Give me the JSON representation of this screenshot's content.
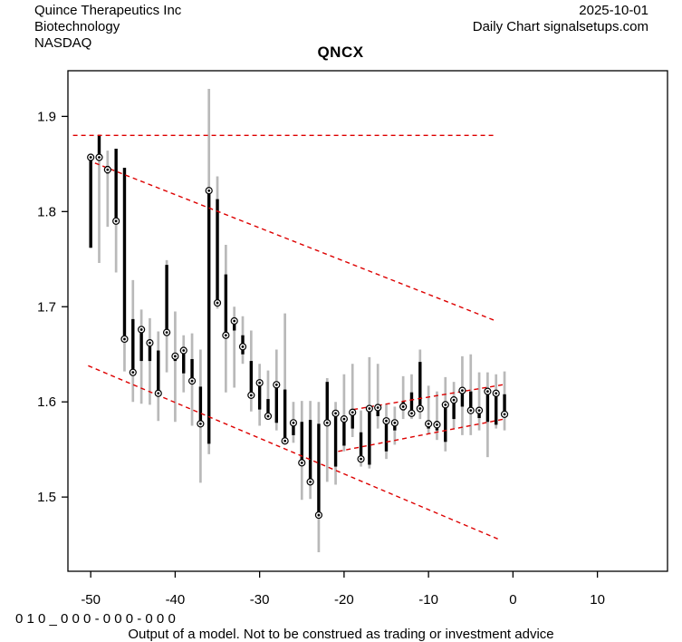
{
  "header": {
    "company": "Quince Therapeutics Inc",
    "sector": "Biotechnology",
    "exchange": "NASDAQ",
    "date": "2025-10-01",
    "source": "Daily Chart signalsetups.com"
  },
  "title": "QNCX",
  "footer": {
    "code_line": "0 1 0 _ 0 0 0 - 0 0 0 - 0 0 0",
    "disclaimer": "Output of a model. Not to be construed as trading or investment advice"
  },
  "chart_data": {
    "type": "ohlc-bar",
    "title": "QNCX",
    "xlabel": "",
    "ylabel": "",
    "x_ticks": [
      -50,
      -40,
      -30,
      -20,
      -10,
      0,
      10
    ],
    "y_ticks": [
      1.5,
      1.6,
      1.7,
      1.8,
      1.9
    ],
    "xlim": [
      -52.7,
      18.3
    ],
    "ylim": [
      1.422,
      1.948
    ],
    "grid": false,
    "colors": {
      "bar_body": "#000000",
      "range_line": "#b9b9b9",
      "trend_line": "#dd0000",
      "axis": "#000000",
      "marker_fill": "#ffffff"
    },
    "bars": [
      {
        "d": -50,
        "high": 1.86,
        "low": 1.762,
        "body_top": 1.858,
        "body_bottom": 1.762,
        "marker": 1.857
      },
      {
        "d": -49,
        "high": 1.881,
        "low": 1.746,
        "body_top": 1.88,
        "body_bottom": 1.857,
        "marker": 1.857
      },
      {
        "d": -48,
        "high": 1.864,
        "low": 1.784,
        "body_top": 1.848,
        "body_bottom": 1.84,
        "marker": 1.844
      },
      {
        "d": -47,
        "high": 1.866,
        "low": 1.736,
        "body_top": 1.866,
        "body_bottom": 1.79,
        "marker": 1.79
      },
      {
        "d": -46,
        "high": 1.846,
        "low": 1.632,
        "body_top": 1.846,
        "body_bottom": 1.666,
        "marker": 1.666
      },
      {
        "d": -45,
        "high": 1.728,
        "low": 1.6,
        "body_top": 1.687,
        "body_bottom": 1.631,
        "marker": 1.631
      },
      {
        "d": -44,
        "high": 1.697,
        "low": 1.598,
        "body_top": 1.676,
        "body_bottom": 1.643,
        "marker": 1.676
      },
      {
        "d": -43,
        "high": 1.688,
        "low": 1.597,
        "body_top": 1.663,
        "body_bottom": 1.643,
        "marker": 1.662
      },
      {
        "d": -42,
        "high": 1.674,
        "low": 1.58,
        "body_top": 1.654,
        "body_bottom": 1.609,
        "marker": 1.609
      },
      {
        "d": -41,
        "high": 1.749,
        "low": 1.631,
        "body_top": 1.744,
        "body_bottom": 1.673,
        "marker": 1.673
      },
      {
        "d": -40,
        "high": 1.695,
        "low": 1.579,
        "body_top": 1.65,
        "body_bottom": 1.643,
        "marker": 1.648
      },
      {
        "d": -39,
        "high": 1.67,
        "low": 1.61,
        "body_top": 1.656,
        "body_bottom": 1.63,
        "marker": 1.654
      },
      {
        "d": -38,
        "high": 1.672,
        "low": 1.575,
        "body_top": 1.645,
        "body_bottom": 1.622,
        "marker": 1.622
      },
      {
        "d": -37,
        "high": 1.655,
        "low": 1.515,
        "body_top": 1.616,
        "body_bottom": 1.577,
        "marker": 1.577
      },
      {
        "d": -36,
        "high": 1.929,
        "low": 1.545,
        "body_top": 1.822,
        "body_bottom": 1.556,
        "marker": 1.822
      },
      {
        "d": -35,
        "high": 1.837,
        "low": 1.698,
        "body_top": 1.813,
        "body_bottom": 1.704,
        "marker": 1.704
      },
      {
        "d": -34,
        "high": 1.765,
        "low": 1.61,
        "body_top": 1.734,
        "body_bottom": 1.67,
        "marker": 1.67
      },
      {
        "d": -33,
        "high": 1.7,
        "low": 1.615,
        "body_top": 1.688,
        "body_bottom": 1.675,
        "marker": 1.685
      },
      {
        "d": -32,
        "high": 1.69,
        "low": 1.64,
        "body_top": 1.67,
        "body_bottom": 1.65,
        "marker": 1.658
      },
      {
        "d": -31,
        "high": 1.675,
        "low": 1.59,
        "body_top": 1.643,
        "body_bottom": 1.607,
        "marker": 1.607
      },
      {
        "d": -30,
        "high": 1.64,
        "low": 1.575,
        "body_top": 1.622,
        "body_bottom": 1.592,
        "marker": 1.62
      },
      {
        "d": -29,
        "high": 1.633,
        "low": 1.585,
        "body_top": 1.603,
        "body_bottom": 1.585,
        "marker": 1.585
      },
      {
        "d": -28,
        "high": 1.655,
        "low": 1.57,
        "body_top": 1.618,
        "body_bottom": 1.578,
        "marker": 1.618
      },
      {
        "d": -27,
        "high": 1.693,
        "low": 1.556,
        "body_top": 1.613,
        "body_bottom": 1.559,
        "marker": 1.559
      },
      {
        "d": -26,
        "high": 1.6,
        "low": 1.557,
        "body_top": 1.58,
        "body_bottom": 1.565,
        "marker": 1.578
      },
      {
        "d": -25,
        "high": 1.601,
        "low": 1.497,
        "body_top": 1.579,
        "body_bottom": 1.536,
        "marker": 1.536
      },
      {
        "d": -24,
        "high": 1.601,
        "low": 1.498,
        "body_top": 1.581,
        "body_bottom": 1.516,
        "marker": 1.516
      },
      {
        "d": -23,
        "high": 1.6,
        "low": 1.442,
        "body_top": 1.577,
        "body_bottom": 1.481,
        "marker": 1.481
      },
      {
        "d": -22,
        "high": 1.625,
        "low": 1.516,
        "body_top": 1.621,
        "body_bottom": 1.578,
        "marker": 1.578
      },
      {
        "d": -21,
        "high": 1.6,
        "low": 1.513,
        "body_top": 1.588,
        "body_bottom": 1.532,
        "marker": 1.588
      },
      {
        "d": -20,
        "high": 1.629,
        "low": 1.548,
        "body_top": 1.582,
        "body_bottom": 1.554,
        "marker": 1.582
      },
      {
        "d": -19,
        "high": 1.64,
        "low": 1.563,
        "body_top": 1.589,
        "body_bottom": 1.572,
        "marker": 1.589
      },
      {
        "d": -18,
        "high": 1.591,
        "low": 1.532,
        "body_top": 1.568,
        "body_bottom": 1.54,
        "marker": 1.54
      },
      {
        "d": -17,
        "high": 1.647,
        "low": 1.53,
        "body_top": 1.593,
        "body_bottom": 1.534,
        "marker": 1.593
      },
      {
        "d": -16,
        "high": 1.64,
        "low": 1.572,
        "body_top": 1.594,
        "body_bottom": 1.585,
        "marker": 1.594
      },
      {
        "d": -15,
        "high": 1.598,
        "low": 1.54,
        "body_top": 1.58,
        "body_bottom": 1.548,
        "marker": 1.58
      },
      {
        "d": -14,
        "high": 1.595,
        "low": 1.555,
        "body_top": 1.578,
        "body_bottom": 1.57,
        "marker": 1.578
      },
      {
        "d": -13,
        "high": 1.627,
        "low": 1.582,
        "body_top": 1.6,
        "body_bottom": 1.591,
        "marker": 1.595
      },
      {
        "d": -12,
        "high": 1.629,
        "low": 1.582,
        "body_top": 1.61,
        "body_bottom": 1.588,
        "marker": 1.588
      },
      {
        "d": -11,
        "high": 1.655,
        "low": 1.582,
        "body_top": 1.642,
        "body_bottom": 1.593,
        "marker": 1.593
      },
      {
        "d": -10,
        "high": 1.617,
        "low": 1.566,
        "body_top": 1.58,
        "body_bottom": 1.572,
        "marker": 1.577
      },
      {
        "d": -9,
        "high": 1.611,
        "low": 1.56,
        "body_top": 1.58,
        "body_bottom": 1.57,
        "marker": 1.576
      },
      {
        "d": -8,
        "high": 1.626,
        "low": 1.548,
        "body_top": 1.597,
        "body_bottom": 1.558,
        "marker": 1.597
      },
      {
        "d": -7,
        "high": 1.621,
        "low": 1.572,
        "body_top": 1.602,
        "body_bottom": 1.582,
        "marker": 1.602
      },
      {
        "d": -6,
        "high": 1.648,
        "low": 1.565,
        "body_top": 1.612,
        "body_bottom": 1.595,
        "marker": 1.612
      },
      {
        "d": -5,
        "high": 1.65,
        "low": 1.565,
        "body_top": 1.611,
        "body_bottom": 1.591,
        "marker": 1.591
      },
      {
        "d": -4,
        "high": 1.631,
        "low": 1.57,
        "body_top": 1.591,
        "body_bottom": 1.583,
        "marker": 1.591
      },
      {
        "d": -3,
        "high": 1.631,
        "low": 1.542,
        "body_top": 1.611,
        "body_bottom": 1.579,
        "marker": 1.611
      },
      {
        "d": -2,
        "high": 1.629,
        "low": 1.572,
        "body_top": 1.609,
        "body_bottom": 1.576,
        "marker": 1.609
      },
      {
        "d": -1,
        "high": 1.632,
        "low": 1.57,
        "body_top": 1.608,
        "body_bottom": 1.587,
        "marker": 1.587
      }
    ],
    "trendlines": [
      {
        "name": "resistance-line",
        "x1": -52.1,
        "y1": 1.88,
        "x2": -2.0,
        "y2": 1.88
      },
      {
        "name": "falling-channel-upper",
        "x1": -49.5,
        "y1": 1.851,
        "x2": -2.0,
        "y2": 1.685
      },
      {
        "name": "falling-channel-lower",
        "x1": -50.3,
        "y1": 1.638,
        "x2": -1.8,
        "y2": 1.456
      },
      {
        "name": "rising-channel-upper",
        "x1": -18.9,
        "y1": 1.592,
        "x2": -1.2,
        "y2": 1.618
      },
      {
        "name": "rising-channel-lower",
        "x1": -20.7,
        "y1": 1.548,
        "x2": -1.0,
        "y2": 1.582
      }
    ]
  }
}
